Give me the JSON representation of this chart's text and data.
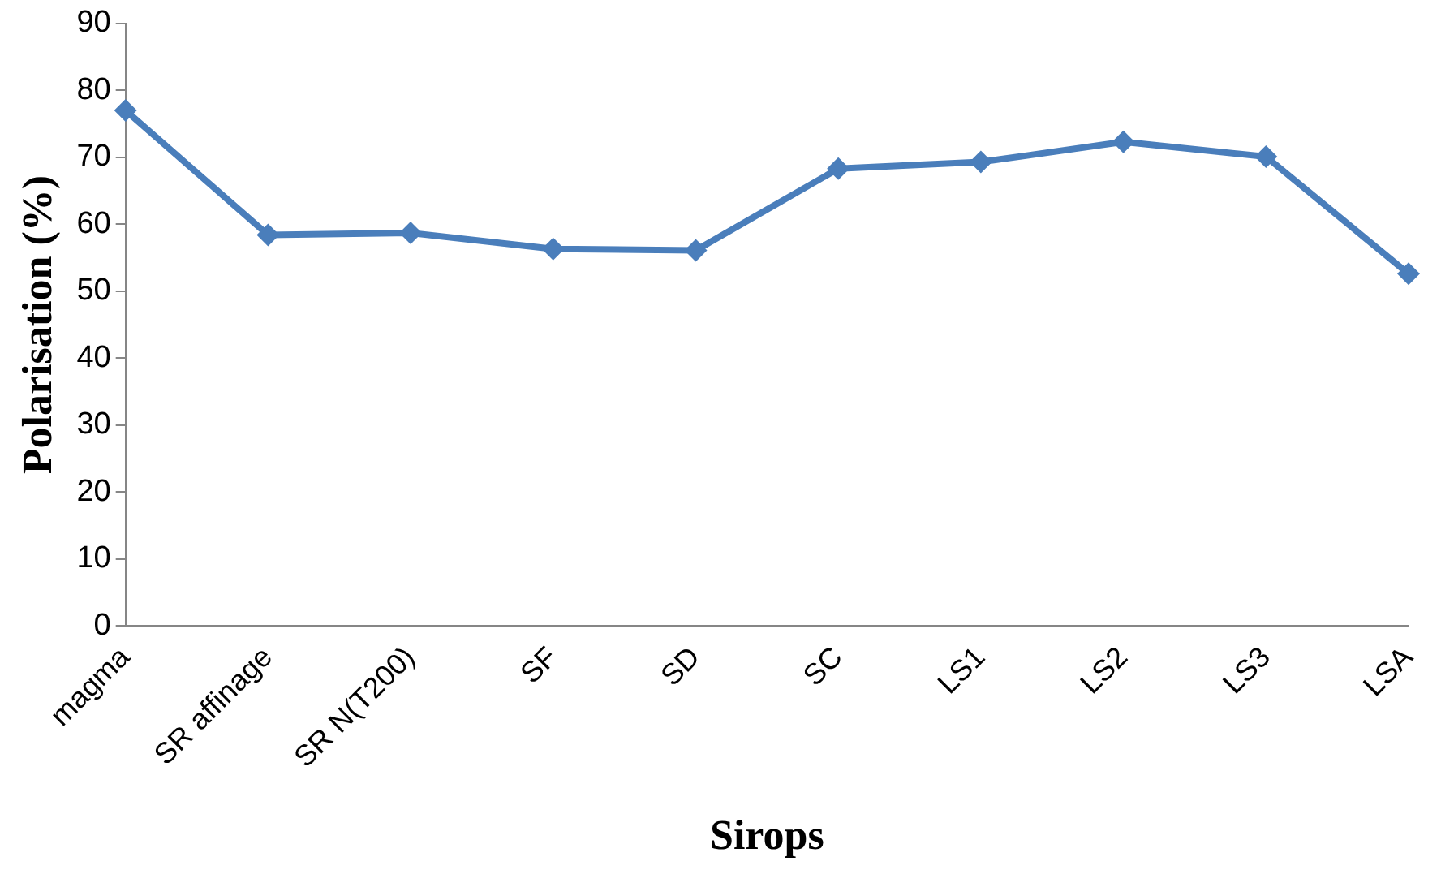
{
  "chart_data": {
    "type": "line",
    "xlabel": "Sirops",
    "ylabel": "Polarisation (%)",
    "categories": [
      "magma",
      "SR affinage",
      "SR N(T200)",
      "SF",
      "SD",
      "SC",
      "LS1",
      "LS2",
      "LS3",
      "LSA"
    ],
    "series": [
      {
        "color": "#4a7ebb",
        "values": [
          77.0,
          58.4,
          58.7,
          56.3,
          56.1,
          68.3,
          69.3,
          72.3,
          70.1,
          52.6
        ]
      }
    ],
    "ylim": [
      0,
      90
    ],
    "yticks": [
      0,
      10,
      20,
      30,
      40,
      50,
      60,
      70,
      80,
      90
    ],
    "grid": false,
    "legend": false,
    "marker": "diamond",
    "line_style": "solid"
  }
}
